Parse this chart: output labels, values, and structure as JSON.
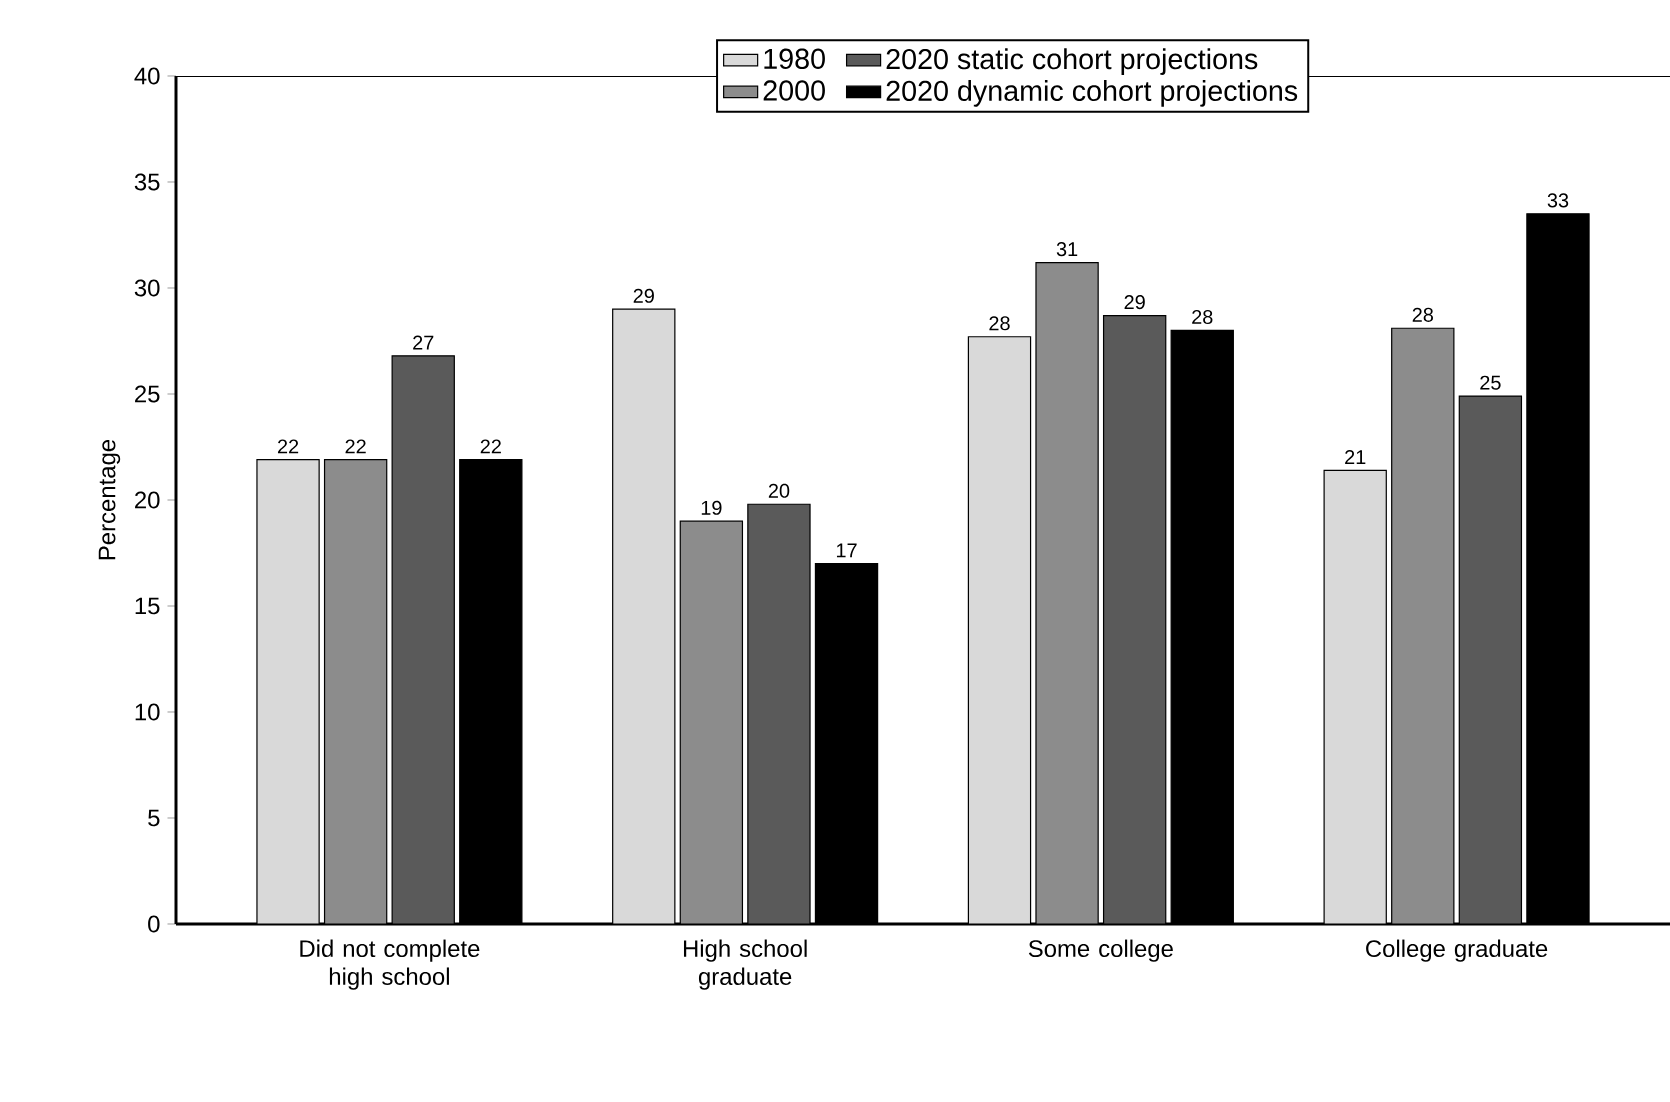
{
  "chart_data": {
    "type": "bar",
    "ylabel": "Percentage",
    "categories": [
      "Did not complete high school",
      "High school graduate",
      "Some college",
      "College graduate"
    ],
    "series": [
      {
        "name": "1980",
        "color": "#d9d9d9",
        "values": [
          21.9,
          29.0,
          27.7,
          21.4
        ],
        "value_labels": [
          "22",
          "29",
          "28",
          "21"
        ]
      },
      {
        "name": "2000",
        "color": "#8c8c8c",
        "values": [
          21.9,
          19.0,
          31.2,
          28.1
        ],
        "value_labels": [
          "22",
          "19",
          "31",
          "28"
        ]
      },
      {
        "name": "2020 static cohort projections",
        "color": "#5a5a5a",
        "values": [
          26.8,
          19.8,
          28.7,
          24.9
        ],
        "value_labels": [
          "27",
          "20",
          "29",
          "25"
        ]
      },
      {
        "name": "2020 dynamic cohort projections",
        "color": "#000000",
        "values": [
          21.9,
          17.0,
          28.0,
          33.5
        ],
        "value_labels": [
          "22",
          "17",
          "28",
          "33"
        ]
      }
    ],
    "ylim": [
      0,
      40
    ],
    "yticks": [
      0,
      5,
      10,
      15,
      20,
      25,
      30,
      35,
      40
    ],
    "grid": false,
    "legend": "top"
  }
}
